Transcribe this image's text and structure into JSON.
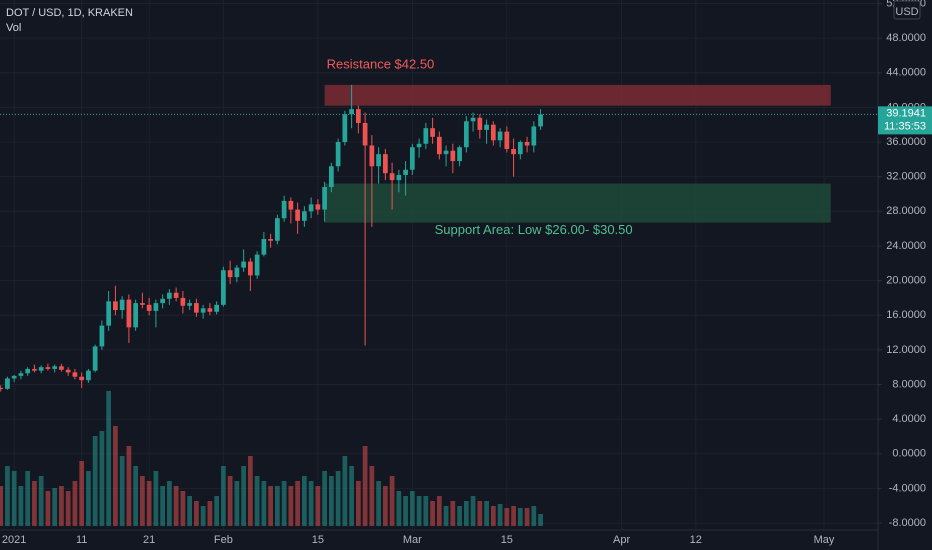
{
  "chart_data": {
    "type": "candlestick",
    "title": "DOT / USD, 1D, KRAKEN",
    "volume_label": "Vol",
    "currency": "USD",
    "countdown": "11:35:53",
    "up_color": "#26a69a",
    "down_color": "#ef5350",
    "grid": true,
    "x": [
      -2,
      -1,
      0,
      1,
      2,
      3,
      4,
      5,
      6,
      7,
      8,
      9,
      10,
      11,
      12,
      13,
      14,
      15,
      16,
      17,
      18,
      19,
      20,
      21,
      22,
      23,
      24,
      25,
      26,
      27,
      28,
      29,
      30,
      31,
      32,
      33,
      34,
      35,
      36,
      37,
      38,
      39,
      40,
      41,
      42,
      43,
      44,
      45,
      46,
      47,
      48,
      49,
      50,
      51,
      52,
      53,
      54,
      55,
      56,
      57,
      58,
      59,
      60,
      61,
      62,
      63,
      64,
      65,
      66,
      67,
      68,
      69,
      70,
      71,
      72,
      73,
      74,
      75,
      76,
      77,
      78
    ],
    "open": [
      7.6,
      7.5,
      8.7,
      9.0,
      9.3,
      9.8,
      9.6,
      10.0,
      9.8,
      10.1,
      9.7,
      9.4,
      8.9,
      8.5,
      9.6,
      12.4,
      14.8,
      17.6,
      16.6,
      17.8,
      14.6,
      17.4,
      17.2,
      16.5,
      17.4,
      17.9,
      18.6,
      18.0,
      17.1,
      17.4,
      16.3,
      16.8,
      16.4,
      17.2,
      21.2,
      20.4,
      21.5,
      22.2,
      20.6,
      23.0,
      24.8,
      24.6,
      27.2,
      29.2,
      28.2,
      26.9,
      28.0,
      28.8,
      28.2,
      30.8,
      33.2,
      36.0,
      39.2,
      39.8,
      38.2,
      35.6,
      33.2,
      34.6,
      32.4,
      31.6,
      32.2,
      32.8,
      35.4,
      35.8,
      37.6,
      36.6,
      34.6,
      35.0,
      33.8,
      35.4,
      38.4,
      38.8,
      37.4,
      38.0,
      36.2,
      37.2,
      35.2,
      34.6,
      36.0,
      35.6,
      37.8
    ],
    "high": [
      7.9,
      8.9,
      9.1,
      9.6,
      10.0,
      10.3,
      10.2,
      10.4,
      10.3,
      10.4,
      10.0,
      9.8,
      9.4,
      9.8,
      12.6,
      15.4,
      18.8,
      19.4,
      18.2,
      18.4,
      17.8,
      18.6,
      18.0,
      17.8,
      18.4,
      19.0,
      19.2,
      18.8,
      17.8,
      17.9,
      17.2,
      17.4,
      17.6,
      21.6,
      22.3,
      21.8,
      23.6,
      22.6,
      23.4,
      25.6,
      25.4,
      27.6,
      29.8,
      29.6,
      29.0,
      28.6,
      29.6,
      29.4,
      31.4,
      33.6,
      36.4,
      39.6,
      42.6,
      40.2,
      39.4,
      36.8,
      35.4,
      35.2,
      33.6,
      32.8,
      33.8,
      35.8,
      36.4,
      38.2,
      38.8,
      37.2,
      35.6,
      35.8,
      35.6,
      39.0,
      39.4,
      39.2,
      38.6,
      38.4,
      37.6,
      37.8,
      36.4,
      36.2,
      36.6,
      38.4,
      39.8
    ],
    "low": [
      7.2,
      7.4,
      8.3,
      8.6,
      9.0,
      9.4,
      9.3,
      9.6,
      9.4,
      9.5,
      9.0,
      8.6,
      7.6,
      8.2,
      9.4,
      12.0,
      14.2,
      16.0,
      15.6,
      12.8,
      14.2,
      16.8,
      16.0,
      14.6,
      16.8,
      17.2,
      17.6,
      16.2,
      16.6,
      15.8,
      15.6,
      16.0,
      16.1,
      17.0,
      19.6,
      19.8,
      21.0,
      18.8,
      20.2,
      22.8,
      23.8,
      24.2,
      26.8,
      26.6,
      25.4,
      26.2,
      27.2,
      27.6,
      26.8,
      30.2,
      32.6,
      35.6,
      37.6,
      37.0,
      12.5,
      26.2,
      31.2,
      31.6,
      28.2,
      30.2,
      29.8,
      32.2,
      34.2,
      35.2,
      35.8,
      34.0,
      33.2,
      32.4,
      33.2,
      34.8,
      37.2,
      36.4,
      35.8,
      35.6,
      35.4,
      34.8,
      32.0,
      34.0,
      34.8,
      34.8,
      37.4
    ],
    "close": [
      7.5,
      8.7,
      9.0,
      9.3,
      9.8,
      9.6,
      10.0,
      9.8,
      10.1,
      9.7,
      9.4,
      8.9,
      8.5,
      9.6,
      12.4,
      14.8,
      17.6,
      16.6,
      17.8,
      14.6,
      17.4,
      17.2,
      16.5,
      17.4,
      17.9,
      18.6,
      18.0,
      17.1,
      17.4,
      16.3,
      16.8,
      16.4,
      17.2,
      21.2,
      20.4,
      21.5,
      22.2,
      20.6,
      23.0,
      24.8,
      24.6,
      27.2,
      29.2,
      28.2,
      26.9,
      28.0,
      28.8,
      28.2,
      30.8,
      33.2,
      36.0,
      39.2,
      39.8,
      38.2,
      35.6,
      33.2,
      34.6,
      32.4,
      31.6,
      32.2,
      32.8,
      35.4,
      35.8,
      37.6,
      36.6,
      34.6,
      35.0,
      33.8,
      35.4,
      38.4,
      38.8,
      37.4,
      38.0,
      36.2,
      37.2,
      35.2,
      34.6,
      36.0,
      35.6,
      37.8,
      39.1941
    ],
    "volume": [
      40,
      60,
      55,
      40,
      55,
      45,
      50,
      35,
      38,
      40,
      35,
      45,
      65,
      55,
      90,
      95,
      135,
      100,
      70,
      80,
      60,
      50,
      45,
      55,
      40,
      45,
      40,
      35,
      30,
      25,
      20,
      25,
      30,
      60,
      50,
      45,
      60,
      70,
      50,
      45,
      40,
      40,
      45,
      40,
      45,
      50,
      45,
      40,
      55,
      50,
      55,
      70,
      60,
      45,
      80,
      60,
      45,
      40,
      50,
      35,
      30,
      35,
      30,
      30,
      25,
      30,
      20,
      25,
      20,
      25,
      30,
      25,
      25,
      20,
      22,
      18,
      20,
      18,
      18,
      20,
      12
    ],
    "xlim": [
      -2.1,
      128
    ],
    "xticks": [
      {
        "value": 0,
        "label": "2021"
      },
      {
        "value": 10,
        "label": "11"
      },
      {
        "value": 20,
        "label": "21"
      },
      {
        "value": 31,
        "label": "Feb"
      },
      {
        "value": 45,
        "label": "15"
      },
      {
        "value": 59,
        "label": "Mar"
      },
      {
        "value": 73,
        "label": "15"
      },
      {
        "value": 90,
        "label": "Apr"
      },
      {
        "value": 101,
        "label": "12"
      },
      {
        "value": 120,
        "label": "May"
      }
    ],
    "ylim": [
      -8.8,
      52.4
    ],
    "yticks": [
      {
        "value": 52,
        "label": "52.0000"
      },
      {
        "value": 48,
        "label": "48.0000"
      },
      {
        "value": 44,
        "label": "44.0000"
      },
      {
        "value": 40,
        "label": "40.0000"
      },
      {
        "value": 36,
        "label": "36.0000"
      },
      {
        "value": 32,
        "label": "32.0000"
      },
      {
        "value": 28,
        "label": "28.0000"
      },
      {
        "value": 24,
        "label": "24.0000"
      },
      {
        "value": 20,
        "label": "20.0000"
      },
      {
        "value": 16,
        "label": "16.0000"
      },
      {
        "value": 12,
        "label": "12.0000"
      },
      {
        "value": 8,
        "label": "8.0000"
      },
      {
        "value": 4,
        "label": "4.0000"
      },
      {
        "value": 0,
        "label": "0.0000"
      },
      {
        "value": -4,
        "label": "-4.0000"
      },
      {
        "value": -8,
        "label": "-8.0000"
      }
    ],
    "zones": [
      {
        "label": "Resistance $42.50",
        "low": 40.2,
        "high": 42.6,
        "x0": 46,
        "x1": 121,
        "color": "#7b2b33",
        "text_color": "#f05b5b"
      },
      {
        "label": "Support Area: Low $26.00- $30.50",
        "low": 26.7,
        "high": 31.2,
        "x0": 46,
        "x1": 121,
        "color": "#1f4a3a",
        "text_color": "#4fbf8f"
      }
    ]
  }
}
